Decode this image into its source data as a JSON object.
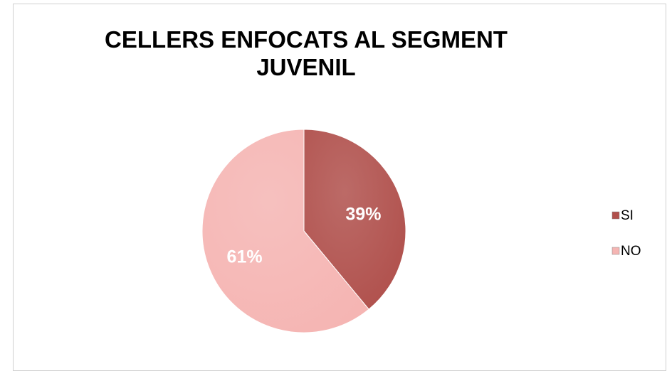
{
  "chart_data": {
    "type": "pie",
    "title": "CELLERS ENFOCATS AL SEGMENT JUVENIL",
    "categories": [
      "SI",
      "NO"
    ],
    "values": [
      39,
      61
    ],
    "value_labels": [
      "39%",
      "61%"
    ],
    "colors": [
      "#b0504c",
      "#f5b5b3"
    ],
    "legend": "right"
  }
}
